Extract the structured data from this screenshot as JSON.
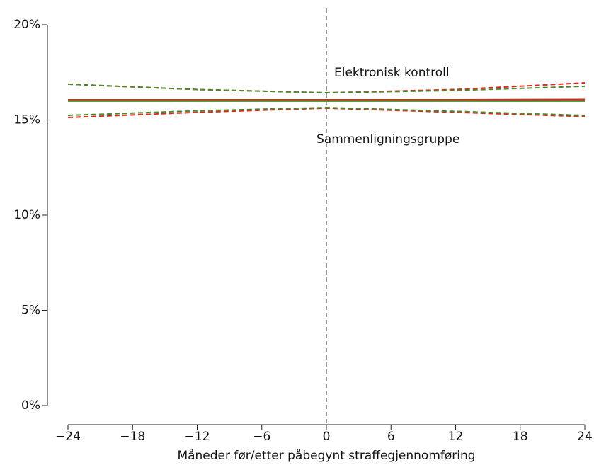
{
  "chart_data": {
    "type": "line",
    "x_label": "Måneder før/etter påbegynt straffegjennomføring",
    "x": [
      -24,
      -12,
      0,
      12,
      24
    ],
    "series": [
      {
        "name": "Elektronisk kontroll",
        "color": "#e3261c",
        "values": [
          16.05,
          16.05,
          16.05,
          16.05,
          16.07
        ],
        "upper": [
          16.88,
          16.6,
          16.43,
          16.6,
          16.95
        ],
        "lower": [
          15.13,
          15.4,
          15.62,
          15.4,
          15.18
        ]
      },
      {
        "name": "Sammenligningsgruppe",
        "color": "#4b8a2c",
        "values": [
          16.0,
          16.0,
          16.0,
          16.0,
          16.0
        ],
        "upper": [
          16.88,
          16.6,
          16.43,
          16.55,
          16.77
        ],
        "lower": [
          15.24,
          15.48,
          15.65,
          15.45,
          15.24
        ]
      }
    ],
    "xlim": [
      -24,
      24
    ],
    "xticks": [
      {
        "value": -24,
        "label": "−24"
      },
      {
        "value": -18,
        "label": "−18"
      },
      {
        "value": -12,
        "label": "−12"
      },
      {
        "value": -6,
        "label": "−6"
      },
      0,
      6,
      12,
      18,
      24
    ],
    "ylim": [
      0,
      20
    ],
    "yticks": [
      {
        "value": 0,
        "label": "0%"
      },
      {
        "value": 5,
        "label": "5%"
      },
      {
        "value": 10,
        "label": "10%"
      },
      {
        "value": 15,
        "label": "15%"
      },
      {
        "value": 20,
        "label": "20%"
      }
    ],
    "vline": 0
  }
}
